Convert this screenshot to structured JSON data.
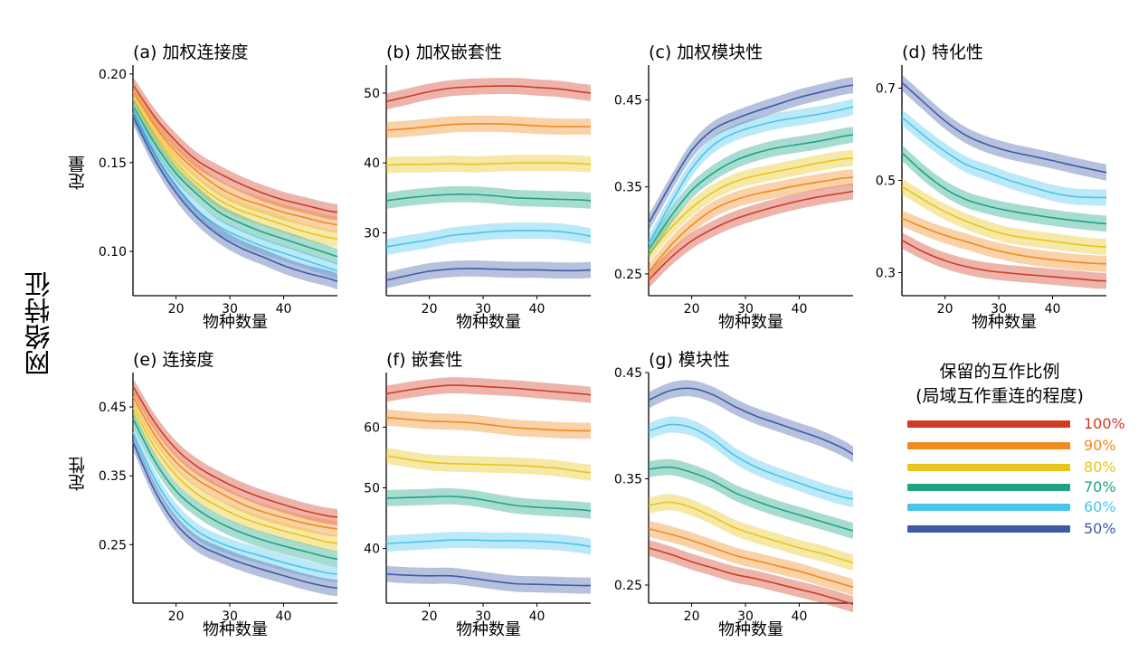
{
  "figure": {
    "ylabel_main": "网络特征",
    "row_labels": [
      "定量",
      "定性"
    ]
  },
  "legend": {
    "title_line1": "保留的互作比例",
    "title_line2": "(局域互作重连的程度)",
    "items": [
      {
        "label": "100%",
        "color": "#d03b22"
      },
      {
        "label": "90%",
        "color": "#f08a1c"
      },
      {
        "label": "80%",
        "color": "#e7c51a"
      },
      {
        "label": "70%",
        "color": "#1ea383"
      },
      {
        "label": "60%",
        "color": "#4bc4ea"
      },
      {
        "label": "50%",
        "color": "#3e5ba6"
      }
    ]
  },
  "chart_data": [
    {
      "id": "a",
      "type": "line",
      "title": "(a) 加权连接度",
      "xlabel": "物种数量",
      "ylabel": "",
      "xlim": [
        12,
        50
      ],
      "ylim": [
        0.075,
        0.205
      ],
      "xticks": [
        20,
        30,
        40
      ],
      "yticks": [
        0.1,
        0.15,
        0.2
      ],
      "ytick_labels": [
        "0.10",
        "0.15",
        "0.20"
      ],
      "x": [
        12,
        16,
        20,
        24,
        28,
        32,
        36,
        40,
        44,
        48,
        50
      ],
      "series": [
        {
          "color": "#d03b22",
          "values": [
            0.194,
            0.176,
            0.162,
            0.151,
            0.144,
            0.138,
            0.133,
            0.129,
            0.126,
            0.123,
            0.122
          ]
        },
        {
          "color": "#f08a1c",
          "values": [
            0.19,
            0.171,
            0.156,
            0.145,
            0.136,
            0.13,
            0.126,
            0.122,
            0.119,
            0.116,
            0.115
          ]
        },
        {
          "color": "#e7c51a",
          "values": [
            0.186,
            0.166,
            0.15,
            0.138,
            0.129,
            0.123,
            0.119,
            0.115,
            0.111,
            0.108,
            0.107
          ]
        },
        {
          "color": "#1ea383",
          "values": [
            0.182,
            0.161,
            0.144,
            0.132,
            0.122,
            0.116,
            0.111,
            0.107,
            0.103,
            0.099,
            0.097
          ]
        },
        {
          "color": "#4bc4ea",
          "values": [
            0.178,
            0.155,
            0.137,
            0.123,
            0.114,
            0.108,
            0.103,
            0.099,
            0.095,
            0.091,
            0.089
          ]
        },
        {
          "color": "#3e5ba6",
          "values": [
            0.176,
            0.152,
            0.133,
            0.119,
            0.109,
            0.102,
            0.097,
            0.092,
            0.088,
            0.085,
            0.083
          ]
        }
      ]
    },
    {
      "id": "b",
      "type": "line",
      "title": "(b) 加权嵌套性",
      "xlabel": "物种数量",
      "ylabel": "",
      "xlim": [
        12,
        50
      ],
      "ylim": [
        21,
        54
      ],
      "xticks": [
        20,
        30,
        40
      ],
      "yticks": [
        30,
        40,
        50
      ],
      "ytick_labels": [
        "30",
        "40",
        "50"
      ],
      "x": [
        12,
        16,
        20,
        24,
        28,
        32,
        36,
        40,
        44,
        48,
        50
      ],
      "series": [
        {
          "color": "#d03b22",
          "values": [
            48.8,
            49.5,
            50.2,
            50.7,
            50.9,
            51.0,
            51.0,
            50.8,
            50.6,
            50.2,
            50.0
          ]
        },
        {
          "color": "#f08a1c",
          "values": [
            44.7,
            44.9,
            45.2,
            45.5,
            45.6,
            45.6,
            45.5,
            45.3,
            45.2,
            45.2,
            45.2
          ]
        },
        {
          "color": "#e7c51a",
          "values": [
            39.7,
            39.8,
            39.8,
            39.9,
            39.8,
            39.9,
            40.0,
            40.0,
            40.0,
            39.9,
            39.8
          ]
        },
        {
          "color": "#1ea383",
          "values": [
            34.6,
            35.0,
            35.3,
            35.5,
            35.5,
            35.3,
            35.0,
            34.9,
            34.8,
            34.7,
            34.6
          ]
        },
        {
          "color": "#4bc4ea",
          "values": [
            28.0,
            28.5,
            29.0,
            29.6,
            29.9,
            30.2,
            30.3,
            30.3,
            30.2,
            29.8,
            29.5
          ]
        },
        {
          "color": "#3e5ba6",
          "values": [
            23.2,
            23.9,
            24.5,
            24.8,
            24.9,
            24.8,
            24.7,
            24.7,
            24.6,
            24.6,
            24.7
          ]
        }
      ]
    },
    {
      "id": "c",
      "type": "line",
      "title": "(c) 加权模块性",
      "xlabel": "物种数量",
      "ylabel": "",
      "xlim": [
        12,
        50
      ],
      "ylim": [
        0.225,
        0.49
      ],
      "xticks": [
        20,
        30,
        40
      ],
      "yticks": [
        0.25,
        0.35,
        0.45
      ],
      "ytick_labels": [
        "0.25",
        "0.35",
        "0.45"
      ],
      "x": [
        12,
        16,
        20,
        24,
        28,
        32,
        36,
        40,
        44,
        48,
        50
      ],
      "series": [
        {
          "color": "#d03b22",
          "values": [
            0.243,
            0.268,
            0.288,
            0.302,
            0.313,
            0.321,
            0.328,
            0.334,
            0.339,
            0.343,
            0.345
          ]
        },
        {
          "color": "#f08a1c",
          "values": [
            0.252,
            0.282,
            0.306,
            0.324,
            0.335,
            0.342,
            0.347,
            0.352,
            0.356,
            0.36,
            0.361
          ]
        },
        {
          "color": "#e7c51a",
          "values": [
            0.272,
            0.302,
            0.326,
            0.344,
            0.356,
            0.363,
            0.368,
            0.373,
            0.378,
            0.382,
            0.383
          ]
        },
        {
          "color": "#1ea383",
          "values": [
            0.278,
            0.315,
            0.346,
            0.366,
            0.38,
            0.389,
            0.395,
            0.399,
            0.403,
            0.408,
            0.41
          ]
        },
        {
          "color": "#4bc4ea",
          "values": [
            0.285,
            0.33,
            0.371,
            0.398,
            0.412,
            0.42,
            0.426,
            0.43,
            0.434,
            0.439,
            0.442
          ]
        },
        {
          "color": "#3e5ba6",
          "values": [
            0.308,
            0.352,
            0.392,
            0.416,
            0.428,
            0.437,
            0.445,
            0.453,
            0.459,
            0.465,
            0.467
          ]
        }
      ]
    },
    {
      "id": "d",
      "type": "line",
      "title": "(d) 特化性",
      "xlabel": "物种数量",
      "ylabel": "",
      "xlim": [
        12,
        50
      ],
      "ylim": [
        0.25,
        0.75
      ],
      "xticks": [
        20,
        30,
        40
      ],
      "yticks": [
        0.3,
        0.5,
        0.7
      ],
      "ytick_labels": [
        "0.3",
        "0.5",
        "0.7"
      ],
      "x": [
        12,
        16,
        20,
        24,
        28,
        32,
        36,
        40,
        44,
        48,
        50
      ],
      "series": [
        {
          "color": "#d03b22",
          "values": [
            0.37,
            0.345,
            0.326,
            0.313,
            0.304,
            0.299,
            0.295,
            0.291,
            0.287,
            0.283,
            0.282
          ]
        },
        {
          "color": "#f08a1c",
          "values": [
            0.418,
            0.398,
            0.381,
            0.367,
            0.353,
            0.342,
            0.334,
            0.328,
            0.323,
            0.32,
            0.319
          ]
        },
        {
          "color": "#e7c51a",
          "values": [
            0.487,
            0.458,
            0.432,
            0.411,
            0.394,
            0.381,
            0.374,
            0.368,
            0.362,
            0.357,
            0.356
          ]
        },
        {
          "color": "#1ea383",
          "values": [
            0.56,
            0.517,
            0.482,
            0.458,
            0.444,
            0.434,
            0.426,
            0.419,
            0.413,
            0.408,
            0.406
          ]
        },
        {
          "color": "#4bc4ea",
          "values": [
            0.637,
            0.598,
            0.563,
            0.534,
            0.517,
            0.5,
            0.486,
            0.473,
            0.465,
            0.463,
            0.463
          ]
        },
        {
          "color": "#3e5ba6",
          "values": [
            0.712,
            0.67,
            0.629,
            0.597,
            0.577,
            0.563,
            0.553,
            0.543,
            0.532,
            0.522,
            0.517
          ]
        }
      ]
    },
    {
      "id": "e",
      "type": "line",
      "title": "(e) 连接度",
      "xlabel": "物种数量",
      "ylabel": "",
      "xlim": [
        12,
        50
      ],
      "ylim": [
        0.165,
        0.5
      ],
      "xticks": [
        20,
        30,
        40
      ],
      "yticks": [
        0.25,
        0.35,
        0.45
      ],
      "ytick_labels": [
        "0.25",
        "0.35",
        "0.45"
      ],
      "x": [
        12,
        16,
        20,
        24,
        28,
        32,
        36,
        40,
        44,
        48,
        50
      ],
      "series": [
        {
          "color": "#d03b22",
          "values": [
            0.48,
            0.428,
            0.389,
            0.363,
            0.345,
            0.33,
            0.318,
            0.308,
            0.299,
            0.292,
            0.29
          ]
        },
        {
          "color": "#f08a1c",
          "values": [
            0.465,
            0.41,
            0.37,
            0.344,
            0.326,
            0.31,
            0.298,
            0.289,
            0.281,
            0.275,
            0.273
          ]
        },
        {
          "color": "#e7c51a",
          "values": [
            0.449,
            0.392,
            0.351,
            0.323,
            0.305,
            0.29,
            0.279,
            0.27,
            0.262,
            0.254,
            0.252
          ]
        },
        {
          "color": "#1ea383",
          "values": [
            0.433,
            0.372,
            0.328,
            0.301,
            0.282,
            0.268,
            0.257,
            0.248,
            0.24,
            0.232,
            0.229
          ]
        },
        {
          "color": "#4bc4ea",
          "values": [
            0.413,
            0.346,
            0.298,
            0.269,
            0.253,
            0.242,
            0.233,
            0.224,
            0.216,
            0.209,
            0.207
          ]
        },
        {
          "color": "#3e5ba6",
          "values": [
            0.399,
            0.329,
            0.28,
            0.251,
            0.236,
            0.224,
            0.214,
            0.205,
            0.196,
            0.189,
            0.187
          ]
        }
      ]
    },
    {
      "id": "f",
      "type": "line",
      "title": "(f) 嵌套性",
      "xlabel": "物种数量",
      "ylabel": "",
      "xlim": [
        12,
        50
      ],
      "ylim": [
        31,
        69
      ],
      "xticks": [
        20,
        30,
        40
      ],
      "yticks": [
        40,
        50,
        60
      ],
      "ytick_labels": [
        "40",
        "50",
        "60"
      ],
      "x": [
        12,
        16,
        20,
        24,
        28,
        32,
        36,
        40,
        44,
        48,
        50
      ],
      "series": [
        {
          "color": "#d03b22",
          "values": [
            65.5,
            66.1,
            66.6,
            66.9,
            66.8,
            66.6,
            66.4,
            66.1,
            65.8,
            65.5,
            65.3
          ]
        },
        {
          "color": "#f08a1c",
          "values": [
            61.6,
            61.3,
            61.0,
            60.9,
            60.7,
            60.3,
            59.9,
            59.7,
            59.5,
            59.4,
            59.4
          ]
        },
        {
          "color": "#e7c51a",
          "values": [
            55.3,
            54.7,
            54.2,
            54.0,
            53.9,
            53.8,
            53.7,
            53.5,
            53.2,
            52.7,
            52.5
          ]
        },
        {
          "color": "#1ea383",
          "values": [
            48.3,
            48.4,
            48.5,
            48.6,
            48.3,
            47.7,
            47.1,
            46.8,
            46.6,
            46.4,
            46.2
          ]
        },
        {
          "color": "#4bc4ea",
          "values": [
            40.8,
            41.0,
            41.2,
            41.4,
            41.4,
            41.3,
            41.3,
            41.2,
            41.0,
            40.6,
            40.3
          ]
        },
        {
          "color": "#3e5ba6",
          "values": [
            35.8,
            35.6,
            35.5,
            35.5,
            35.1,
            34.6,
            34.2,
            34.1,
            34.0,
            33.9,
            33.9
          ]
        }
      ]
    },
    {
      "id": "g",
      "type": "line",
      "title": "(g) 模块性",
      "xlabel": "物种数量",
      "ylabel": "",
      "xlim": [
        12,
        50
      ],
      "ylim": [
        0.233,
        0.45
      ],
      "xticks": [
        20,
        30,
        40
      ],
      "yticks": [
        0.25,
        0.35,
        0.45
      ],
      "ytick_labels": [
        "0.25",
        "0.35",
        "0.45"
      ],
      "x": [
        12,
        16,
        20,
        24,
        28,
        32,
        36,
        40,
        44,
        48,
        50
      ],
      "series": [
        {
          "color": "#d03b22",
          "values": [
            0.285,
            0.279,
            0.272,
            0.266,
            0.26,
            0.256,
            0.251,
            0.246,
            0.241,
            0.235,
            0.232
          ]
        },
        {
          "color": "#f08a1c",
          "values": [
            0.303,
            0.298,
            0.292,
            0.285,
            0.278,
            0.273,
            0.268,
            0.263,
            0.257,
            0.251,
            0.248
          ]
        },
        {
          "color": "#e7c51a",
          "values": [
            0.325,
            0.328,
            0.323,
            0.314,
            0.304,
            0.297,
            0.291,
            0.285,
            0.28,
            0.274,
            0.271
          ]
        },
        {
          "color": "#1ea383",
          "values": [
            0.359,
            0.361,
            0.356,
            0.348,
            0.337,
            0.329,
            0.322,
            0.316,
            0.31,
            0.304,
            0.301
          ]
        },
        {
          "color": "#4bc4ea",
          "values": [
            0.395,
            0.401,
            0.398,
            0.387,
            0.372,
            0.361,
            0.353,
            0.346,
            0.339,
            0.333,
            0.331
          ]
        },
        {
          "color": "#3e5ba6",
          "values": [
            0.424,
            0.433,
            0.435,
            0.429,
            0.418,
            0.409,
            0.402,
            0.395,
            0.388,
            0.379,
            0.373
          ]
        }
      ]
    }
  ]
}
